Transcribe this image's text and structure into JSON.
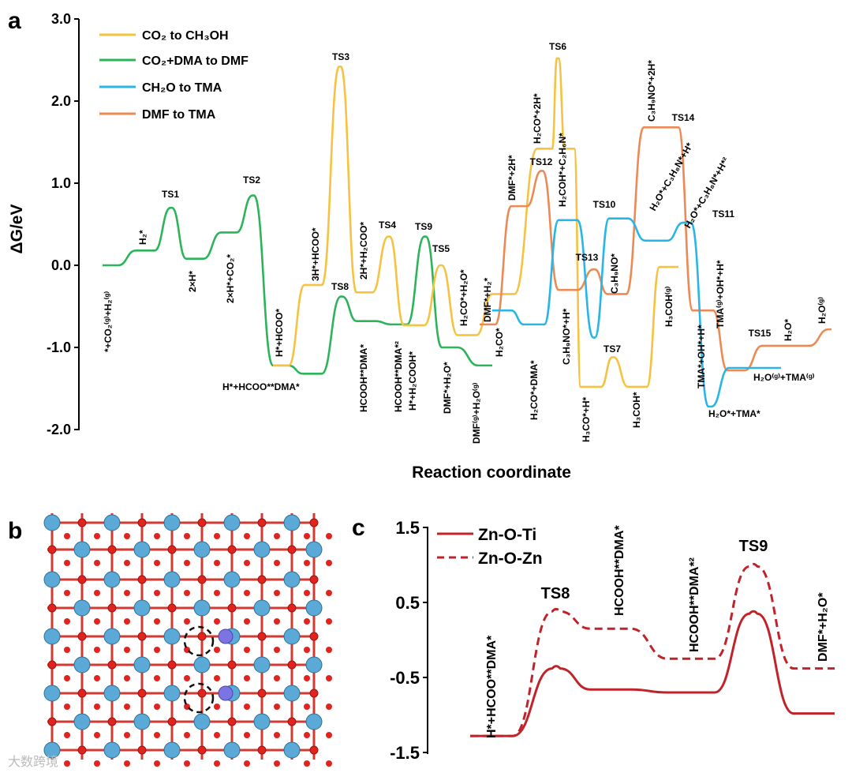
{
  "panels": {
    "a": "a",
    "b": "b",
    "c": "c"
  },
  "watermark": "大数跨境",
  "chart_data": [
    {
      "panel": "a",
      "type": "line",
      "xlabel": "Reaction coordinate",
      "ylabel": "ΔG/eV",
      "ylim": [
        -2.0,
        3.0
      ],
      "yticks": [
        "3.0",
        "2.0",
        "1.0",
        "0.0",
        "-1.0",
        "-2.0"
      ],
      "legend_position": "top-left",
      "series": [
        {
          "name": "CO₂ to CH₃OH",
          "color": "#f5c242",
          "x": [
            1,
            2,
            3,
            4,
            5,
            6,
            7,
            8,
            9,
            10,
            11,
            12,
            13,
            14,
            15,
            16,
            17,
            18
          ],
          "y": [
            -1.22,
            -0.24,
            2.42,
            -0.33,
            0.35,
            -0.73,
            0.0,
            -0.85,
            -0.35,
            1.42,
            2.52,
            1.42,
            -1.48,
            -1.12,
            -1.48,
            -0.02,
            -0.02,
            -0.02
          ]
        },
        {
          "name": "CO₂+DMA to DMF",
          "color": "#2db35a",
          "x": [
            1,
            2,
            3,
            4,
            5,
            6,
            7,
            8,
            9,
            10,
            11,
            12,
            13,
            14,
            15,
            16,
            17,
            18,
            19
          ],
          "y": [
            0.0,
            0.0,
            0.18,
            0.18,
            0.7,
            0.08,
            0.08,
            0.4,
            0.4,
            0.85,
            -1.22,
            -1.32,
            -1.32,
            -0.38,
            -0.68,
            -0.72,
            0.35,
            -1.0,
            -1.22
          ]
        },
        {
          "name": "CH₂O to TMA",
          "color": "#29b6e6",
          "x": [
            1,
            2,
            3,
            4,
            5,
            6,
            7,
            8,
            9,
            10,
            11,
            12,
            13
          ],
          "y": [
            -0.55,
            -0.72,
            0.55,
            0.6,
            -0.88,
            -0.88,
            0.57,
            0.3,
            0.52,
            -1.72,
            -1.72,
            -1.25,
            -1.25
          ]
        },
        {
          "name": "DMF to TMA",
          "color": "#ec8a55",
          "x": [
            1,
            2,
            3,
            4,
            5,
            6,
            7,
            8,
            9,
            10,
            11,
            12,
            13
          ],
          "y": [
            -0.72,
            0.72,
            1.15,
            -0.3,
            -0.05,
            -0.35,
            1.68,
            1.68,
            -0.55,
            -1.28,
            -0.98,
            -0.98,
            -0.78
          ]
        }
      ],
      "annotations": {
        "ts1": "TS1",
        "ts2": "TS2",
        "ts3": "TS3",
        "ts4": "TS4",
        "ts5": "TS5",
        "ts6": "TS6",
        "ts7": "TS7",
        "ts8": "TS8",
        "ts9": "TS9",
        "ts10": "TS10",
        "ts11": "TS11",
        "ts12": "TS12",
        "ts13": "TS13",
        "ts14": "TS14",
        "ts15": "TS15",
        "co2_h2g": "*+CO₂⁽ᵍ⁾+H₂⁽ᵍ⁾",
        "h2": "H₂*",
        "two_h": "2×H*",
        "two_h_co2": "2×H*+CO₂*",
        "h_hcoo": "H*+HCOO*",
        "h_hcoo_dma": "H*+HCOO**DMA*",
        "three_h_hcoo": "3H*+HCOO*",
        "hcooh_dma": "HCOOH**DMA*",
        "two_h_h2coo": "2H*+H₂COO*",
        "hcooh_dma2": "HCOOH**DMA*²",
        "h_h2cooh": "H*+H₂COOH*",
        "dmf_h2o": "DMF*+H₂O*",
        "h2co_h2o": "H₂CO*+H₂O*",
        "dmfg_h2og": "DMF⁽ᵍ⁾+H₂O⁽ᵍ⁾",
        "dmf_h2": "DMF*+H₂*",
        "dmf_2h": "DMF*+2H*",
        "h2co": "H₂CO*",
        "h2co_dma": "H₂CO*+DMA*",
        "h2co_2h": "H₂CO*+2H*",
        "h2coh_c2h6n": "H₂COH*+C₂H₆N*",
        "c3h9no_h": "C₃H₉NO*+H*",
        "h3co_h": "H₃CO*+H*",
        "c3h9no_2h": "C₃H₉NO*+2H*",
        "c3h9no": "C₃H₉NO*",
        "h3coh": "H₃COH*",
        "h3cohg": "H₃COH⁽ᵍ⁾",
        "h2o_c3h8n_h": "H₂O*+C₃H₈N*+H*",
        "h2o_c3h8n_h2": "H₂O*+C₃H₈N*+H*²",
        "tmag_oh_h": "TMA⁽ᵍ⁾+OH*+H*",
        "tma_oh_h": "TMA*+OH*+H*",
        "h2o_tma": "H₂O*+TMA*",
        "h2o": "H₂O*",
        "h2og": "H₂O⁽ᵍ⁾",
        "h2og_tmag": "H₂O⁽ᵍ⁾+TMA⁽ᵍ⁾"
      }
    },
    {
      "panel": "c",
      "type": "line",
      "ylim": [
        -1.5,
        1.5
      ],
      "yticks": [
        "1.5",
        "0.5",
        "-0.5",
        "-1.5"
      ],
      "legend_position": "top-left",
      "categories": [
        "H*+HCOO**DMA*",
        "TS8",
        "HCOOH**DMA*",
        "HCOOH**DMA*²",
        "TS9",
        "DMF*+H₂O*"
      ],
      "series": [
        {
          "name": "Zn-O-Ti",
          "color": "#c0242a",
          "style": "solid",
          "values": [
            -1.28,
            -0.38,
            -0.66,
            -0.7,
            0.35,
            -0.98
          ]
        },
        {
          "name": "Zn-O-Zn",
          "color": "#c0242a",
          "style": "dashed",
          "values": [
            -1.28,
            0.38,
            0.15,
            -0.25,
            0.98,
            -0.38
          ]
        }
      ]
    }
  ]
}
